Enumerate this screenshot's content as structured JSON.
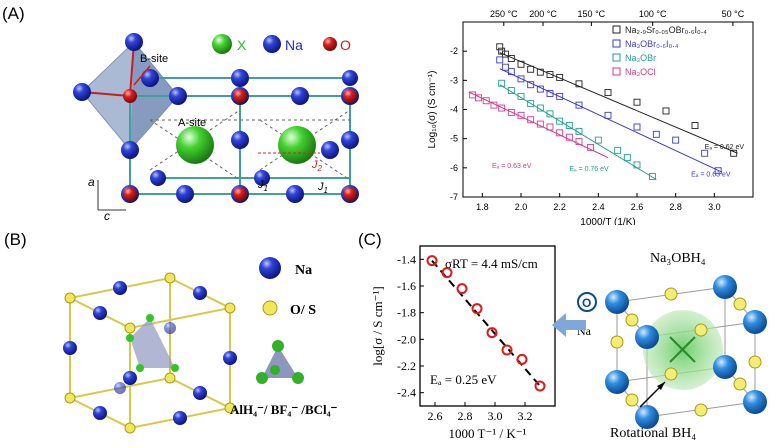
{
  "panels": {
    "A": "(A)",
    "B": "(B)",
    "C": "(C)"
  },
  "panelA": {
    "legend": {
      "x": "X",
      "na": "Na",
      "o": "O"
    },
    "labels": {
      "bsite": "B-site",
      "asite": "A-site",
      "j1a": "J",
      "j1b": "J",
      "j2": "J",
      "sub1": "1",
      "sub2": "2",
      "a": "a",
      "c": "c"
    },
    "colors": {
      "x": "#2db82d",
      "na": "#1a2fbf",
      "o": "#d11b1b"
    }
  },
  "panelB": {
    "legend": {
      "na": "Na",
      "os": "O/ S",
      "anions": "AlH₄⁻/ BF₄⁻ /BCl₄⁻"
    }
  },
  "panelC": {
    "title": "Na₃OBH₄",
    "na_label": "Na",
    "o_label": "O",
    "rot_label": "Rotational BH₄"
  },
  "chart_data": [
    {
      "type": "scatter",
      "id": "arrhenius-A",
      "xlabel": "1000/T (1/K)",
      "ylabel": "Log₁₀(σ) (S cm⁻¹)",
      "xlim": [
        1.7,
        3.2
      ],
      "ylim": [
        -7,
        -1
      ],
      "xticks": [
        "1.8",
        "2.0",
        "2.2",
        "2.4",
        "2.6",
        "2.8",
        "3.0"
      ],
      "xtick_values": [
        1.8,
        2.0,
        2.2,
        2.4,
        2.6,
        2.8,
        3.0
      ],
      "yticks": [
        "-2",
        "-3",
        "-4",
        "-5",
        "-6",
        "-7"
      ],
      "ytick_values": [
        -2,
        -3,
        -4,
        -5,
        -6,
        -7
      ],
      "top_ticks": [
        "250 °C",
        "200 °C",
        "150 °C",
        "100 °C",
        "50 °C"
      ],
      "top_tick_values": [
        1.911,
        2.114,
        2.364,
        2.681,
        3.096
      ],
      "grid": false,
      "legend_position": "top-right",
      "series": [
        {
          "name": "Na₂.₉Sr₀.₀₅OBr₀.₆I₀.₄",
          "color": "#222222",
          "marker": "square",
          "x": [
            1.89,
            1.9,
            1.92,
            1.95,
            2.0,
            2.05,
            2.1,
            2.15,
            2.2,
            2.3,
            2.45,
            2.6,
            2.75,
            2.9,
            3.1
          ],
          "y": [
            -1.85,
            -2.0,
            -2.1,
            -2.25,
            -2.45,
            -2.62,
            -2.72,
            -2.8,
            -2.9,
            -3.12,
            -3.42,
            -3.75,
            -4.05,
            -4.55,
            -5.5
          ],
          "fit": [
            [
              1.89,
              -2.05
            ],
            [
              3.12,
              -5.5
            ]
          ],
          "annotation": "Eₐ = 0.62 eV"
        },
        {
          "name": "Na₃OBr₀.₆I₀.₄",
          "color": "#3b3bcc",
          "marker": "square",
          "x": [
            1.89,
            1.92,
            1.95,
            2.0,
            2.05,
            2.1,
            2.15,
            2.2,
            2.3,
            2.45,
            2.6,
            2.7,
            2.8,
            2.95,
            3.02
          ],
          "y": [
            -2.3,
            -2.55,
            -2.7,
            -2.95,
            -3.15,
            -3.3,
            -3.45,
            -3.55,
            -3.85,
            -4.2,
            -4.6,
            -4.85,
            -5.05,
            -5.5,
            -6.1
          ],
          "fit": [
            [
              1.89,
              -2.6
            ],
            [
              3.04,
              -6.15
            ]
          ],
          "annotation": "Eₐ = 0.63 eV"
        },
        {
          "name": "Na₃OBr",
          "color": "#239e8c",
          "marker": "square",
          "x": [
            1.9,
            1.95,
            2.0,
            2.05,
            2.1,
            2.15,
            2.2,
            2.25,
            2.3,
            2.4,
            2.5,
            2.55,
            2.6,
            2.68
          ],
          "y": [
            -3.1,
            -3.35,
            -3.55,
            -3.8,
            -3.95,
            -4.15,
            -4.4,
            -4.55,
            -4.75,
            -5.05,
            -5.4,
            -5.65,
            -5.9,
            -6.3
          ],
          "fit": [
            [
              1.89,
              -3.15
            ],
            [
              2.7,
              -6.4
            ]
          ],
          "annotation": "Eₐ = 0.76 eV"
        },
        {
          "name": "Na₃OCl",
          "color": "#d63a8c",
          "marker": "square",
          "x": [
            1.75,
            1.78,
            1.82,
            1.86,
            1.9,
            1.95,
            2.0,
            2.05,
            2.1,
            2.15,
            2.2,
            2.25,
            2.3,
            2.36
          ],
          "y": [
            -3.5,
            -3.6,
            -3.7,
            -3.85,
            -3.95,
            -4.1,
            -4.2,
            -4.35,
            -4.5,
            -4.6,
            -4.8,
            -4.95,
            -5.1,
            -5.3
          ],
          "fit": [
            [
              1.73,
              -3.4
            ],
            [
              2.45,
              -5.65
            ]
          ],
          "annotation": "Eₐ = 0.63 eV"
        }
      ]
    },
    {
      "type": "scatter",
      "id": "arrhenius-C",
      "xlabel": "1000 T⁻¹ / K⁻¹",
      "ylabel": "log[σ / S cm⁻¹]",
      "xlim": [
        2.5,
        3.4
      ],
      "ylim": [
        -2.5,
        -1.3
      ],
      "xticks": [
        "2.6",
        "2.8",
        "3.0",
        "3.2"
      ],
      "xtick_values": [
        2.6,
        2.8,
        3.0,
        3.2
      ],
      "yticks": [
        "-1.4",
        "-1.6",
        "-1.8",
        "-2.0",
        "-2.2",
        "-2.4"
      ],
      "ytick_values": [
        -1.4,
        -1.6,
        -1.8,
        -2.0,
        -2.2,
        -2.4
      ],
      "annotations": [
        "σRT = 4.4 mS/cm",
        "Eₐ = 0.25 eV"
      ],
      "series": [
        {
          "name": "",
          "color": "#e01818",
          "marker": "circle",
          "x": [
            2.58,
            2.68,
            2.78,
            2.88,
            2.98,
            3.08,
            3.18,
            3.3
          ],
          "y": [
            -1.41,
            -1.5,
            -1.62,
            -1.77,
            -1.95,
            -2.08,
            -2.15,
            -2.35
          ]
        }
      ]
    }
  ]
}
